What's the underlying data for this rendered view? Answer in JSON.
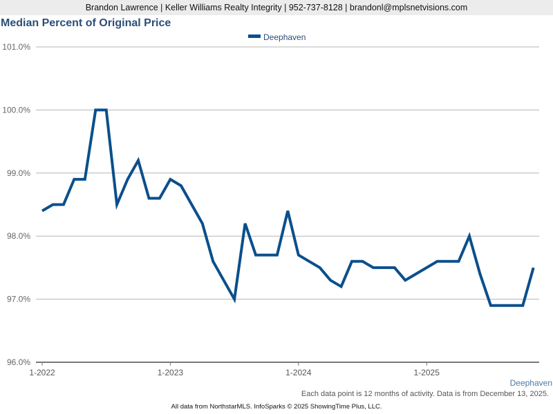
{
  "header": {
    "contact": "Brandon Lawrence | Keller Williams Realty Integrity | 952-737-8128 | brandonl@mplsnetvisions.com"
  },
  "footer": {
    "note": "Each data point is 12 months of activity. Data is from December 13, 2025.",
    "credit": "All data from NorthstarMLS. InfoSparks © 2025 ShowingTime Plus, LLC."
  },
  "chart_data": {
    "type": "line",
    "title": "Median Percent of Original Price",
    "xlabel": "Deephaven",
    "ylabel": "",
    "ylim": [
      96.0,
      101.0
    ],
    "yticks": [
      "96.0%",
      "97.0%",
      "98.0%",
      "99.0%",
      "100.0%",
      "101.0%"
    ],
    "xticks": [
      "1-2022",
      "1-2023",
      "1-2024",
      "1-2025"
    ],
    "legend": {
      "position": "top-center",
      "entries": [
        "Deephaven"
      ]
    },
    "grid": true,
    "color": "#0b4f8c",
    "x_start": "1-2022",
    "x_interval": "month",
    "series": [
      {
        "name": "Deephaven",
        "values": [
          98.4,
          98.5,
          98.5,
          98.9,
          98.9,
          100.0,
          100.0,
          98.5,
          98.9,
          99.2,
          98.6,
          98.6,
          98.9,
          98.8,
          98.5,
          98.2,
          97.6,
          97.3,
          97.0,
          98.2,
          97.7,
          97.7,
          97.7,
          98.4,
          97.7,
          97.6,
          97.5,
          97.3,
          97.2,
          97.6,
          97.6,
          97.5,
          97.5,
          97.5,
          97.3,
          97.4,
          97.5,
          97.6,
          97.6,
          97.6,
          98.0,
          97.4,
          96.9,
          96.9,
          96.9,
          96.9,
          97.5
        ]
      }
    ]
  }
}
